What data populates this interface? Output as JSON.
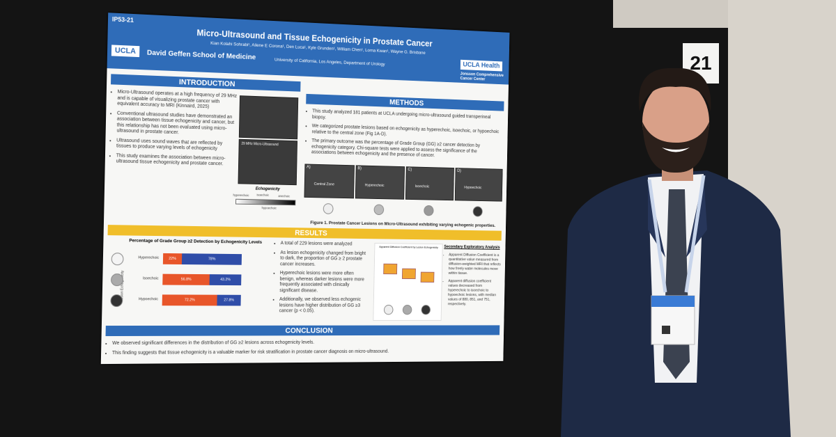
{
  "board_number": "21",
  "poster": {
    "id": "IP53-21",
    "title": "Micro-Ultrasound and Tissue Echogenicity in Prostate Cancer",
    "authors": "Kian Kolahi Sohrabi¹, Ailene E Corona¹, Den Luca¹, Kyle Grunden¹, William Chen¹, Lorna Kwan¹, Wayne G. Brisbane",
    "left_logo": "UCLA",
    "school": "David Geffen School of Medicine",
    "department": "University of California, Los Angeles, Department of Urology",
    "right_logo": {
      "name": "UCLA",
      "suffix": "Health"
    },
    "center": "Jonsson Comprehensive Cancer Center",
    "introduction": {
      "heading": "INTRODUCTION",
      "bullets": [
        "Micro-Ultrasound operates at a high frequency of 29 MHz and is capable of visualizing prostate cancer with equivalent accuracy to MRI (Kinnaird, 2025)",
        "Conventional ultrasound studies have demonstrated an association between tissue echogenicity and cancer, but this relationship has not been evaluated using micro-ultrasound in prostate cancer.",
        "Ultrasound uses sound waves that are reflected by tissues to produce varying levels of echogenicity",
        "This study examines the association between micro-ultrasound tissue echogenicity and prostate cancer."
      ],
      "image_labels": [
        "29 MHz Micro-Ultrasound"
      ],
      "scale": {
        "title": "Echogenicity",
        "labels": [
          "hyperechoic",
          "isoechoic",
          "anechoic",
          "hypoechoic"
        ]
      }
    },
    "methods": {
      "heading": "METHODS",
      "bullets": [
        "This study analyzed 181 patients at UCLA undergoing micro-ultrasound guided transperineal biopsy.",
        "We categorized prostate lesions based on echogenicity as hyperechoic, isoechoic, or hypoechoic relative to the central zone (Fig 1A-D).",
        "The primary outcome was the percentage of Grade Group (GG) ≥2 cancer detection by echogenicity category. Chi-square tests were applied to assess the significance of the associations between echogenicity and the presence of cancer."
      ],
      "panels": [
        "A)",
        "B)",
        "C)",
        "D)"
      ],
      "panel_notes": [
        "Central Zone",
        "Hyperechoic",
        "Isoechoic",
        "Hypoechoic"
      ],
      "figure_caption": "Figure 1. Prostate Cancer Lesions on Micro-Ultrasound exhibiting varying echogenic properties."
    },
    "results": {
      "heading": "RESULTS",
      "chart_title": "Percentage of Grade Group ≥2 Detection by Echogenicity Levels",
      "y_axis": "Lesion Echogenicity",
      "rows": [
        {
          "label": "Hyperechoic",
          "low": "22%",
          "high": "78%"
        },
        {
          "label": "Isoechoic",
          "low": "56.8%",
          "high": "43.2%"
        },
        {
          "label": "Hypoechoic",
          "low": "72.2%",
          "high": "27.8%"
        }
      ],
      "bullets": [
        "A total of 229 lesions were analyzed",
        "As lesion echogenicity changed from bright to dark, the proportion of GG ≥ 2 prostate cancer increases.",
        "Hyperechoic lesions were more often benign, whereas darker lesions were more frequently associated with clinically significant disease.",
        "Additionally, we observed less echogenic lesions have higher distribution of GG ≥3 cancer (p < 0.05)."
      ],
      "box_title": "Apparent Diffusion Coefficient by Lesion Echogenicity",
      "secondary_title": "Secondary Exploratory Analysis",
      "secondary_bullets": [
        "Apparent Diffusion Coefficient is a quantitative value measured from diffusion-weighted MRI that reflects how freely water molecules move within tissue.",
        "Apparent diffusion coefficient values decreased from hyperechoic to isoechoic to hypoechoic lesions, with median values of 880, 851, and 751, respectively."
      ]
    },
    "conclusion": {
      "heading": "CONCLUSION",
      "bullets": [
        "We observed significant differences in the distribution of GG ≥2 lesions across echogenicity levels.",
        "This finding suggests that tissue echogenicity is a valuable marker for risk stratification in prostate cancer diagnosis on micro-ultrasound."
      ]
    }
  }
}
